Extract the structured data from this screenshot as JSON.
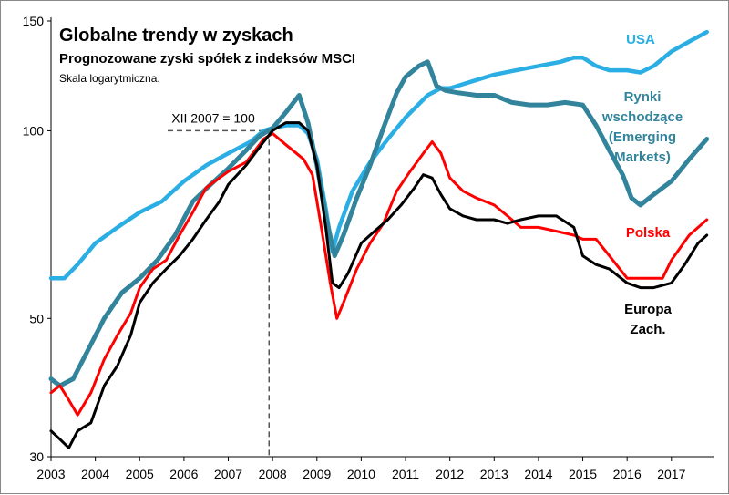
{
  "chart_data": {
    "type": "line",
    "title": "Globalne trendy w zyskach",
    "subtitle": "Prognozowane zyski spółek z indeksów MSCI",
    "note": "Skala logarytmiczna.",
    "scale": "log",
    "ylim": [
      30,
      150
    ],
    "yticks": [
      "150",
      "100",
      "50",
      "30"
    ],
    "ytick_values": [
      150,
      100,
      50,
      30
    ],
    "xlim": [
      2003,
      2017.95
    ],
    "xticks": [
      "2003",
      "2004",
      "2005",
      "2006",
      "2007",
      "2008",
      "2009",
      "2010",
      "2011",
      "2012",
      "2013",
      "2014",
      "2015",
      "2016",
      "2017"
    ],
    "reference": {
      "label": "XII 2007 = 100",
      "x": 2007.92,
      "y": 100
    },
    "series": [
      {
        "name": "USA",
        "color": "#2aaee4",
        "label_lines": [
          "USA"
        ],
        "points": [
          [
            2003.0,
            58
          ],
          [
            2003.3,
            58
          ],
          [
            2003.6,
            61
          ],
          [
            2004.0,
            66
          ],
          [
            2004.5,
            70
          ],
          [
            2005.0,
            74
          ],
          [
            2005.5,
            77
          ],
          [
            2006.0,
            83
          ],
          [
            2006.5,
            88
          ],
          [
            2007.0,
            92
          ],
          [
            2007.5,
            96
          ],
          [
            2007.8,
            100
          ],
          [
            2008.0,
            101
          ],
          [
            2008.3,
            102
          ],
          [
            2008.6,
            102
          ],
          [
            2008.8,
            99
          ],
          [
            2009.0,
            90
          ],
          [
            2009.2,
            75
          ],
          [
            2009.35,
            64
          ],
          [
            2009.5,
            70
          ],
          [
            2009.8,
            80
          ],
          [
            2010.2,
            89
          ],
          [
            2010.6,
            97
          ],
          [
            2011.0,
            105
          ],
          [
            2011.5,
            114
          ],
          [
            2011.8,
            117
          ],
          [
            2012.0,
            117
          ],
          [
            2012.5,
            120
          ],
          [
            2013.0,
            123
          ],
          [
            2013.5,
            125
          ],
          [
            2014.0,
            127
          ],
          [
            2014.5,
            129
          ],
          [
            2014.8,
            131
          ],
          [
            2015.0,
            131
          ],
          [
            2015.3,
            127
          ],
          [
            2015.6,
            125
          ],
          [
            2016.0,
            125
          ],
          [
            2016.3,
            124
          ],
          [
            2016.6,
            127
          ],
          [
            2017.0,
            134
          ],
          [
            2017.4,
            139
          ],
          [
            2017.8,
            144
          ]
        ]
      },
      {
        "name": "Rynki wschodzące (Emerging Markets)",
        "color": "#31849b",
        "label_lines": [
          "Rynki",
          "wschodzące",
          "(Emerging",
          "Markets)"
        ],
        "points": [
          [
            2003.0,
            40
          ],
          [
            2003.2,
            39
          ],
          [
            2003.5,
            40
          ],
          [
            2003.8,
            44
          ],
          [
            2004.2,
            50
          ],
          [
            2004.6,
            55
          ],
          [
            2005.0,
            58
          ],
          [
            2005.4,
            62
          ],
          [
            2005.8,
            68
          ],
          [
            2006.2,
            77
          ],
          [
            2006.6,
            82
          ],
          [
            2007.0,
            87
          ],
          [
            2007.4,
            93
          ],
          [
            2007.7,
            98
          ],
          [
            2008.0,
            101
          ],
          [
            2008.3,
            107
          ],
          [
            2008.6,
            114
          ],
          [
            2008.8,
            103
          ],
          [
            2009.0,
            88
          ],
          [
            2009.2,
            73
          ],
          [
            2009.4,
            63
          ],
          [
            2009.6,
            68
          ],
          [
            2009.9,
            78
          ],
          [
            2010.2,
            88
          ],
          [
            2010.5,
            101
          ],
          [
            2010.8,
            115
          ],
          [
            2011.0,
            122
          ],
          [
            2011.3,
            127
          ],
          [
            2011.5,
            129
          ],
          [
            2011.7,
            118
          ],
          [
            2011.9,
            116
          ],
          [
            2012.2,
            115
          ],
          [
            2012.6,
            114
          ],
          [
            2013.0,
            114
          ],
          [
            2013.4,
            111
          ],
          [
            2013.8,
            110
          ],
          [
            2014.2,
            110
          ],
          [
            2014.6,
            111
          ],
          [
            2015.0,
            110
          ],
          [
            2015.3,
            102
          ],
          [
            2015.6,
            93
          ],
          [
            2015.9,
            85
          ],
          [
            2016.1,
            78
          ],
          [
            2016.3,
            76
          ],
          [
            2016.6,
            79
          ],
          [
            2017.0,
            83
          ],
          [
            2017.4,
            90
          ],
          [
            2017.8,
            97
          ]
        ]
      },
      {
        "name": "Polska",
        "color": "#ff0000",
        "label_lines": [
          "Polska"
        ],
        "points": [
          [
            2003.0,
            38
          ],
          [
            2003.2,
            39
          ],
          [
            2003.4,
            37
          ],
          [
            2003.6,
            35
          ],
          [
            2003.9,
            38
          ],
          [
            2004.2,
            43
          ],
          [
            2004.5,
            47
          ],
          [
            2004.8,
            51
          ],
          [
            2005.0,
            56
          ],
          [
            2005.3,
            60
          ],
          [
            2005.6,
            62
          ],
          [
            2005.9,
            68
          ],
          [
            2006.2,
            74
          ],
          [
            2006.5,
            81
          ],
          [
            2006.8,
            84
          ],
          [
            2007.0,
            86
          ],
          [
            2007.4,
            89
          ],
          [
            2007.8,
            97
          ],
          [
            2008.0,
            99
          ],
          [
            2008.3,
            95
          ],
          [
            2008.7,
            90
          ],
          [
            2008.9,
            85
          ],
          [
            2009.1,
            70
          ],
          [
            2009.3,
            57
          ],
          [
            2009.45,
            50
          ],
          [
            2009.6,
            53
          ],
          [
            2009.9,
            60
          ],
          [
            2010.2,
            66
          ],
          [
            2010.5,
            71
          ],
          [
            2010.8,
            80
          ],
          [
            2011.1,
            86
          ],
          [
            2011.4,
            92
          ],
          [
            2011.6,
            96
          ],
          [
            2011.8,
            92
          ],
          [
            2012.0,
            84
          ],
          [
            2012.3,
            80
          ],
          [
            2012.6,
            78
          ],
          [
            2013.0,
            76
          ],
          [
            2013.3,
            73
          ],
          [
            2013.6,
            70
          ],
          [
            2014.0,
            70
          ],
          [
            2014.4,
            69
          ],
          [
            2014.8,
            68
          ],
          [
            2015.0,
            67
          ],
          [
            2015.3,
            67
          ],
          [
            2015.6,
            63
          ],
          [
            2016.0,
            58
          ],
          [
            2016.4,
            58
          ],
          [
            2016.8,
            58
          ],
          [
            2017.0,
            62
          ],
          [
            2017.4,
            68
          ],
          [
            2017.8,
            72
          ]
        ]
      },
      {
        "name": "Europa Zach.",
        "color": "#000000",
        "label_lines": [
          "Europa",
          "Zach."
        ],
        "points": [
          [
            2003.0,
            33
          ],
          [
            2003.2,
            32
          ],
          [
            2003.4,
            31
          ],
          [
            2003.6,
            33
          ],
          [
            2003.9,
            34
          ],
          [
            2004.2,
            39
          ],
          [
            2004.5,
            42
          ],
          [
            2004.8,
            47
          ],
          [
            2005.0,
            53
          ],
          [
            2005.3,
            57
          ],
          [
            2005.6,
            60
          ],
          [
            2005.9,
            63
          ],
          [
            2006.2,
            67
          ],
          [
            2006.5,
            72
          ],
          [
            2006.8,
            77
          ],
          [
            2007.0,
            82
          ],
          [
            2007.4,
            88
          ],
          [
            2007.8,
            96
          ],
          [
            2008.0,
            100
          ],
          [
            2008.3,
            103
          ],
          [
            2008.6,
            103
          ],
          [
            2008.8,
            100
          ],
          [
            2009.0,
            88
          ],
          [
            2009.2,
            70
          ],
          [
            2009.35,
            57
          ],
          [
            2009.5,
            56
          ],
          [
            2009.7,
            59
          ],
          [
            2010.0,
            66
          ],
          [
            2010.3,
            69
          ],
          [
            2010.6,
            72
          ],
          [
            2010.9,
            76
          ],
          [
            2011.2,
            81
          ],
          [
            2011.4,
            85
          ],
          [
            2011.6,
            84
          ],
          [
            2011.8,
            79
          ],
          [
            2012.0,
            75
          ],
          [
            2012.3,
            73
          ],
          [
            2012.6,
            72
          ],
          [
            2013.0,
            72
          ],
          [
            2013.3,
            71
          ],
          [
            2013.6,
            72
          ],
          [
            2014.0,
            73
          ],
          [
            2014.4,
            73
          ],
          [
            2014.8,
            70
          ],
          [
            2015.0,
            63
          ],
          [
            2015.3,
            61
          ],
          [
            2015.6,
            60
          ],
          [
            2016.0,
            57
          ],
          [
            2016.3,
            56
          ],
          [
            2016.6,
            56
          ],
          [
            2017.0,
            57
          ],
          [
            2017.3,
            61
          ],
          [
            2017.6,
            66
          ],
          [
            2017.8,
            68
          ]
        ]
      }
    ]
  }
}
